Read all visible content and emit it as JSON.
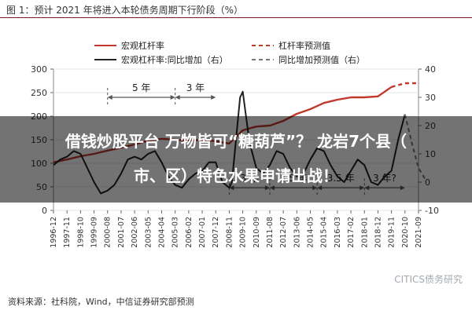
{
  "header": {
    "title": "图 1：预计 2021 年将进入本轮债务周期下行阶段（%）"
  },
  "footer": {
    "source": "资料来源：社科院，Wind，中信证券研究部预测"
  },
  "watermark": {
    "text": "CITICS债务研究"
  },
  "overlay": {
    "line1": "借钱炒股平台 万物皆可“糖葫芦”？ 龙岩7个县（",
    "line2": "市、区）特色水果申请出战！"
  },
  "colors": {
    "leverage": "#c0392b",
    "yoy": "#222222",
    "forecast_yoy": "#777777",
    "arrow": "#555555"
  },
  "chart_data": {
    "type": "line",
    "legend": [
      {
        "label": "宏观杠杆率",
        "style": "solid",
        "color": "#c0392b"
      },
      {
        "label": "杠杆率预测值",
        "style": "dashed",
        "color": "#c0392b"
      },
      {
        "label": "宏观杠杆率:同比增加（右）",
        "style": "solid",
        "color": "#222222"
      },
      {
        "label": "同比增加预测值（右）",
        "style": "dashed",
        "color": "#777777"
      }
    ],
    "x_ticks": [
      "1996-12",
      "1997-11",
      "1998-10",
      "1999-09",
      "2000-08",
      "2001-07",
      "2002-06",
      "2003-05",
      "2004-04",
      "2005-03",
      "2006-02",
      "2007-01",
      "2007-12",
      "2008-11",
      "2009-10",
      "2010-09",
      "2011-08",
      "2012-07",
      "2013-06",
      "2014-05",
      "2015-04",
      "2016-03",
      "2017-02",
      "2018-01",
      "2018-12",
      "2019-11",
      "2020-10",
      "2021-09"
    ],
    "y_left": {
      "min": 0,
      "max": 300,
      "ticks": [
        0,
        50,
        100,
        150,
        200,
        250,
        300
      ]
    },
    "y_right": {
      "min": -10,
      "max": 40,
      "ticks": [
        -10,
        0,
        10,
        20,
        30,
        40
      ]
    },
    "cycle_annotations": [
      {
        "label": "5 年",
        "from": 4.0,
        "to": 9.0,
        "y": 30,
        "axis": "right"
      },
      {
        "label": "3 年",
        "from": 9.0,
        "to": 12.0,
        "y": 30,
        "axis": "right"
      },
      {
        "label": "3 年",
        "from": 13.0,
        "to": 16.0,
        "y": -2,
        "axis": "right"
      },
      {
        "label": "3.5 年",
        "from": 16.0,
        "to": 19.5,
        "y": -2,
        "axis": "right"
      },
      {
        "label": "3.5 年",
        "from": 19.5,
        "to": 23.0,
        "y": -2,
        "axis": "right"
      },
      {
        "label": "3 年?",
        "from": 23.0,
        "to": 26.0,
        "y": -2,
        "axis": "right"
      }
    ],
    "series": [
      {
        "name": "宏观杠杆率",
        "axis": "left",
        "style": "solid",
        "x": [
          0,
          1,
          2,
          3,
          4,
          5,
          6,
          7,
          8,
          9,
          10,
          11,
          12,
          13,
          14,
          15,
          16,
          17,
          18,
          19,
          20,
          21,
          22,
          23,
          24,
          25
        ],
        "values": [
          102,
          108,
          115,
          120,
          127,
          133,
          140,
          148,
          152,
          150,
          148,
          150,
          147,
          142,
          170,
          178,
          180,
          190,
          205,
          215,
          228,
          235,
          240,
          240,
          242,
          262
        ]
      },
      {
        "name": "杠杆率预测值",
        "axis": "left",
        "style": "dashed",
        "x": [
          25,
          26,
          27
        ],
        "values": [
          262,
          270,
          270
        ]
      },
      {
        "name": "宏观杠杆率:同比增加（右）",
        "axis": "right",
        "style": "solid",
        "x": [
          0,
          0.5,
          1,
          1.5,
          2,
          2.5,
          3,
          3.5,
          4,
          4.5,
          5,
          5.5,
          6,
          6.5,
          7,
          7.5,
          8,
          8.5,
          9,
          9.5,
          10,
          10.5,
          11,
          11.5,
          12,
          12.5,
          13,
          13.2,
          13.5,
          13.8,
          14,
          14.5,
          15,
          15.5,
          16,
          16.5,
          17,
          17.5,
          18,
          18.5,
          19,
          19.5,
          20,
          20.5,
          21,
          21.5,
          22,
          22.5,
          23,
          23.5,
          24,
          24.5,
          25,
          25.5,
          26
        ],
        "values": [
          6,
          8,
          9,
          11,
          10,
          5,
          0,
          -4,
          -3,
          -1,
          3,
          8,
          9,
          8,
          10,
          11,
          7,
          2,
          -1,
          -2,
          1,
          3,
          4,
          7,
          7,
          0,
          -2,
          0,
          15,
          30,
          32,
          14,
          5,
          3,
          6,
          11,
          10,
          5,
          2,
          3,
          8,
          12,
          11,
          6,
          2,
          0,
          4,
          8,
          6,
          0,
          -1,
          2,
          4,
          15,
          24
        ]
      },
      {
        "name": "同比增加预测值（右）",
        "axis": "right",
        "style": "dashed",
        "x": [
          26,
          26.5,
          27,
          27.5
        ],
        "values": [
          24,
          14,
          5,
          1
        ]
      }
    ]
  }
}
